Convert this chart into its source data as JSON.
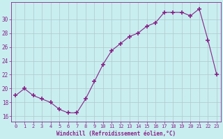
{
  "x": [
    0,
    1,
    2,
    3,
    4,
    5,
    6,
    7,
    8,
    9,
    10,
    11,
    12,
    13,
    14,
    15,
    16,
    17,
    18,
    19,
    20,
    21,
    22,
    23
  ],
  "y": [
    19,
    20,
    19,
    18.5,
    18,
    17,
    16.5,
    16.5,
    18.5,
    21,
    23.5,
    25.5,
    26.5,
    27.5,
    28,
    29,
    29.5,
    31,
    31,
    31,
    30.5,
    31.5,
    27,
    22
  ],
  "line_color": "#882288",
  "marker": "+",
  "marker_size": 4,
  "marker_lw": 1.2,
  "bg_color": "#c8eef0",
  "grid_color": "#b0c8cc",
  "xlabel": "Windchill (Refroidissement éolien,°C)",
  "ylabel": "",
  "yticks": [
    16,
    18,
    20,
    22,
    24,
    26,
    28,
    30
  ],
  "ylim": [
    15.2,
    32.5
  ],
  "xlim": [
    -0.5,
    23.5
  ],
  "label_color": "#882288",
  "tick_color": "#882288",
  "tick_fontsize": 5.0,
  "xlabel_fontsize": 5.5
}
